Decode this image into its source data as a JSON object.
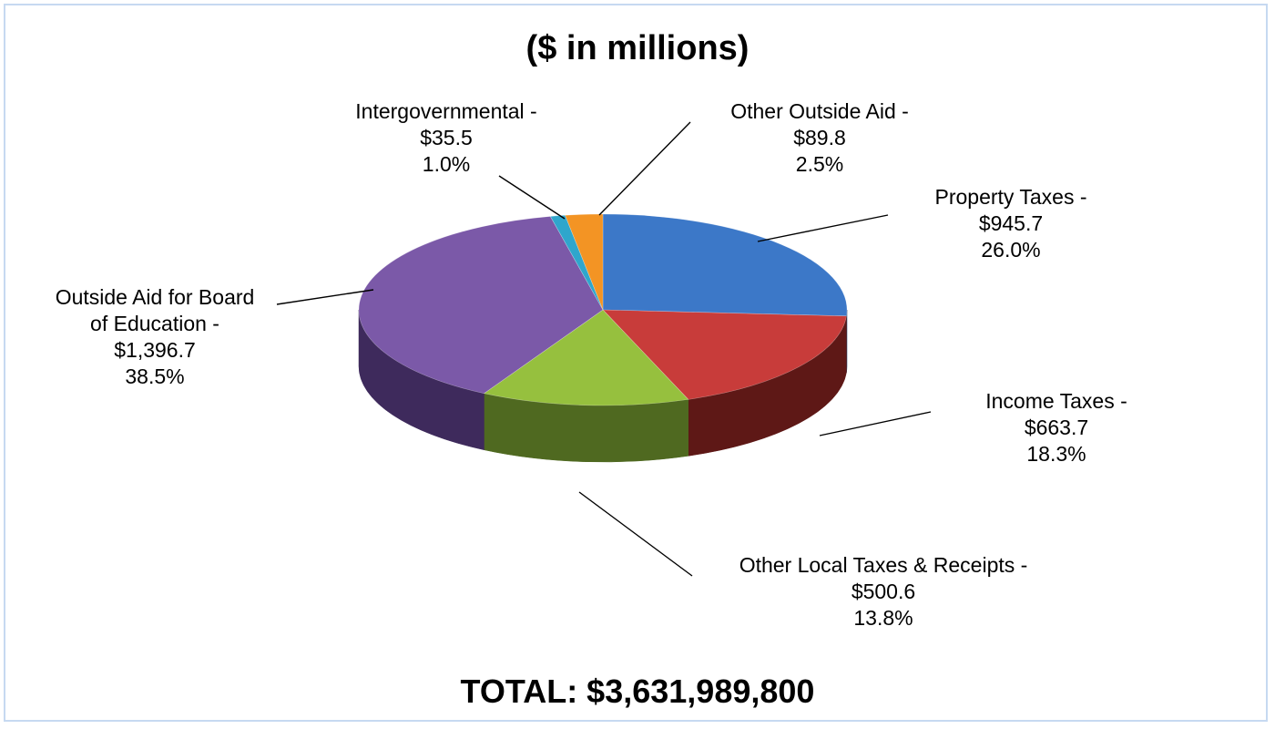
{
  "title": "($ in millions)",
  "total": "TOTAL: $3,631,989,800",
  "chart_data": {
    "type": "pie",
    "title": "($ in millions)",
    "slices": [
      {
        "label": "Property Taxes -",
        "value": 945.7,
        "value_text": "$945.7",
        "pct_text": "26.0%",
        "color": "#3c78c8",
        "side_color": "#1f3e66"
      },
      {
        "label": "Income Taxes -",
        "value": 663.7,
        "value_text": "$663.7",
        "pct_text": "18.3%",
        "color": "#c83c3a",
        "side_color": "#5e1816"
      },
      {
        "label": "Other Local Taxes & Receipts -",
        "value": 500.6,
        "value_text": "$500.6",
        "pct_text": "13.8%",
        "color": "#96c03e",
        "side_color": "#4f6920"
      },
      {
        "label": "Outside Aid for Board of Education -",
        "label_lines": [
          "Outside Aid for Board",
          "of Education -"
        ],
        "value": 1396.7,
        "value_text": "$1,396.7",
        "pct_text": "38.5%",
        "color": "#7b59a8",
        "side_color": "#3e2a5c"
      },
      {
        "label": "Intergovernmental -",
        "value": 35.5,
        "value_text": "$35.5",
        "pct_text": "1.0%",
        "color": "#2fa6cc",
        "side_color": "#176a84"
      },
      {
        "label": "Other Outside Aid -",
        "value": 89.8,
        "value_text": "$89.8",
        "pct_text": "2.5%",
        "color": "#f39424",
        "side_color": "#9a5508"
      }
    ],
    "total": "TOTAL: $3,631,989,800"
  }
}
